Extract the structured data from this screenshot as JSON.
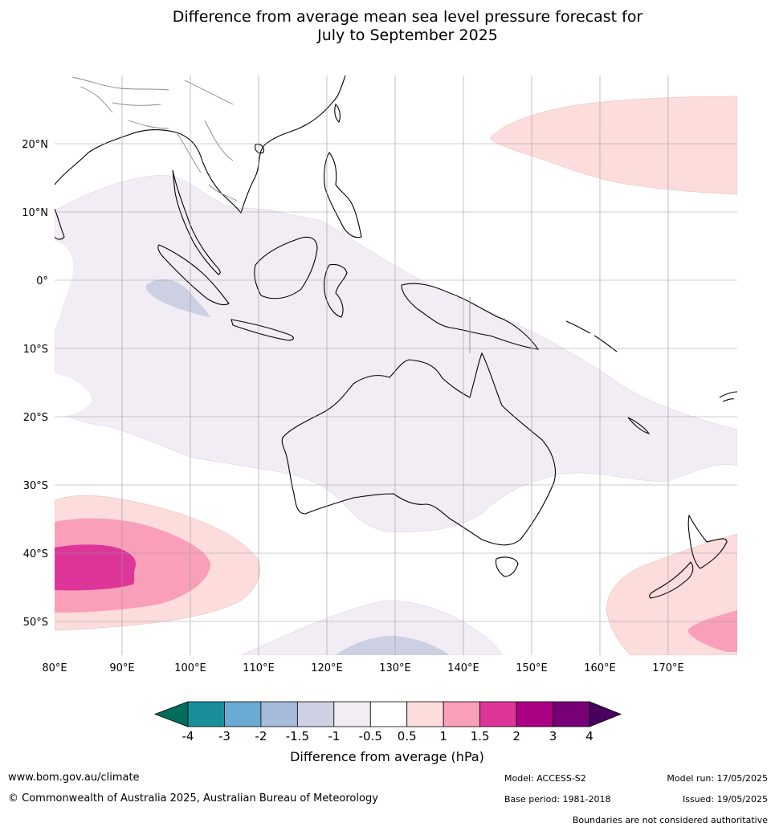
{
  "title_line1": "Difference from average mean sea level pressure forecast for",
  "title_line2": "July to September 2025",
  "map": {
    "lon_labels": [
      "80°E",
      "90°E",
      "100°E",
      "110°E",
      "120°E",
      "130°E",
      "140°E",
      "150°E",
      "160°E",
      "170°E"
    ],
    "lat_labels": [
      "20°N",
      "10°N",
      "0°",
      "10°S",
      "20°S",
      "30°S",
      "40°S",
      "50°S"
    ],
    "lon_range": [
      80,
      180
    ],
    "lat_range": [
      -55,
      30
    ],
    "grid": true,
    "fields": [
      {
        "name": "north-pacific-positive",
        "class": "0.5 to 1",
        "color": "#fddcdc"
      },
      {
        "name": "tropical-negative-band",
        "class": "-1 to -0.5",
        "color": "#f2ecf5"
      },
      {
        "name": "southwest-positive-outer",
        "class": "0.5 to 1",
        "color": "#fddcdc"
      },
      {
        "name": "southwest-positive-middle",
        "class": "1 to 1.5",
        "color": "#f99fb9"
      },
      {
        "name": "southwest-positive-core",
        "class": "1.5 to 2",
        "color": "#de359a"
      },
      {
        "name": "new-zealand-positive-outer",
        "class": "0.5 to 1",
        "color": "#fddcdc"
      },
      {
        "name": "new-zealand-positive-middle",
        "class": "1 to 1.5",
        "color": "#f99fb9"
      },
      {
        "name": "southern-ocean-negative",
        "class": "-1.5 to -1",
        "color": "#cdd0e3"
      }
    ]
  },
  "colorbar": {
    "colors": [
      "#006d5c",
      "#1a8f99",
      "#69abd2",
      "#a6bbd9",
      "#cfd0e3",
      "#f2ecf5",
      "#ffffff",
      "#fddcdc",
      "#f99fb9",
      "#de359a",
      "#ab0084",
      "#770077",
      "#48005f"
    ],
    "tick_labels": [
      "-4",
      "-3",
      "-2",
      "-1.5",
      "-1",
      "-0.5",
      "0.5",
      "1",
      "1.5",
      "2",
      "3",
      "4"
    ],
    "title": "Difference from average (hPa)"
  },
  "footer": {
    "url": "www.bom.gov.au/climate",
    "copyright": "© Commonwealth of Australia 2025, Australian Bureau of Meteorology",
    "model": "Model: ACCESS-S2",
    "base_period": "Base period: 1981-2018",
    "model_run": "Model run: 17/05/2025",
    "issued": "Issued: 19/05/2025",
    "disclaimer": "Boundaries are not considered authoritative"
  }
}
